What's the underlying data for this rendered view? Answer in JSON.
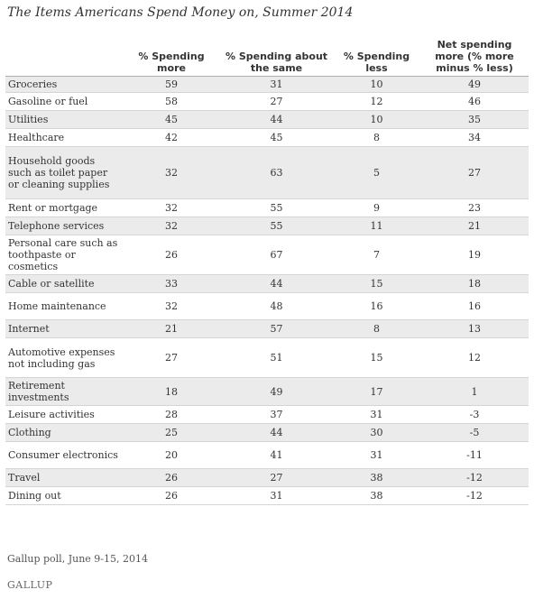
{
  "title": "The Items Americans Spend Money on, Summer 2014",
  "table": {
    "headers": [
      "",
      "% Spending more",
      "% Spending about the same",
      "% Spending less",
      "Net spending more (% more minus % less)"
    ],
    "rows": [
      [
        "Groceries",
        "59",
        "31",
        "10",
        "49"
      ],
      [
        "Gasoline or fuel",
        "58",
        "27",
        "12",
        "46"
      ],
      [
        "Utilities",
        "45",
        "44",
        "10",
        "35"
      ],
      [
        "Healthcare",
        "42",
        "45",
        "8",
        "34"
      ],
      [
        "Household goods such as toilet paper or cleaning supplies",
        "32",
        "63",
        "5",
        "27"
      ],
      [
        "Rent or mortgage",
        "32",
        "55",
        "9",
        "23"
      ],
      [
        "Telephone services",
        "32",
        "55",
        "11",
        "21"
      ],
      [
        "Personal care such as toothpaste or cosmetics",
        "26",
        "67",
        "7",
        "19"
      ],
      [
        "Cable or satellite",
        "33",
        "44",
        "15",
        "18"
      ],
      [
        "Home maintenance",
        "32",
        "48",
        "16",
        "16"
      ],
      [
        "Internet",
        "21",
        "57",
        "8",
        "13"
      ],
      [
        "Automotive expenses not including gas",
        "27",
        "51",
        "15",
        "12"
      ],
      [
        "Retirement investments",
        "18",
        "49",
        "17",
        "1"
      ],
      [
        "Leisure activities",
        "28",
        "37",
        "31",
        "-3"
      ],
      [
        "Clothing",
        "25",
        "44",
        "30",
        "-5"
      ],
      [
        "Consumer electronics",
        "20",
        "41",
        "31",
        "-11"
      ],
      [
        "Travel",
        "26",
        "27",
        "38",
        "-12"
      ],
      [
        "Dining out",
        "26",
        "31",
        "38",
        "-12"
      ]
    ]
  },
  "source": "Gallup poll, June 9-15, 2014",
  "logo": "GALLUP",
  "colors": {
    "row_shade": "#ebebeb",
    "text": "#333333",
    "rule": "#d4d4d4"
  }
}
